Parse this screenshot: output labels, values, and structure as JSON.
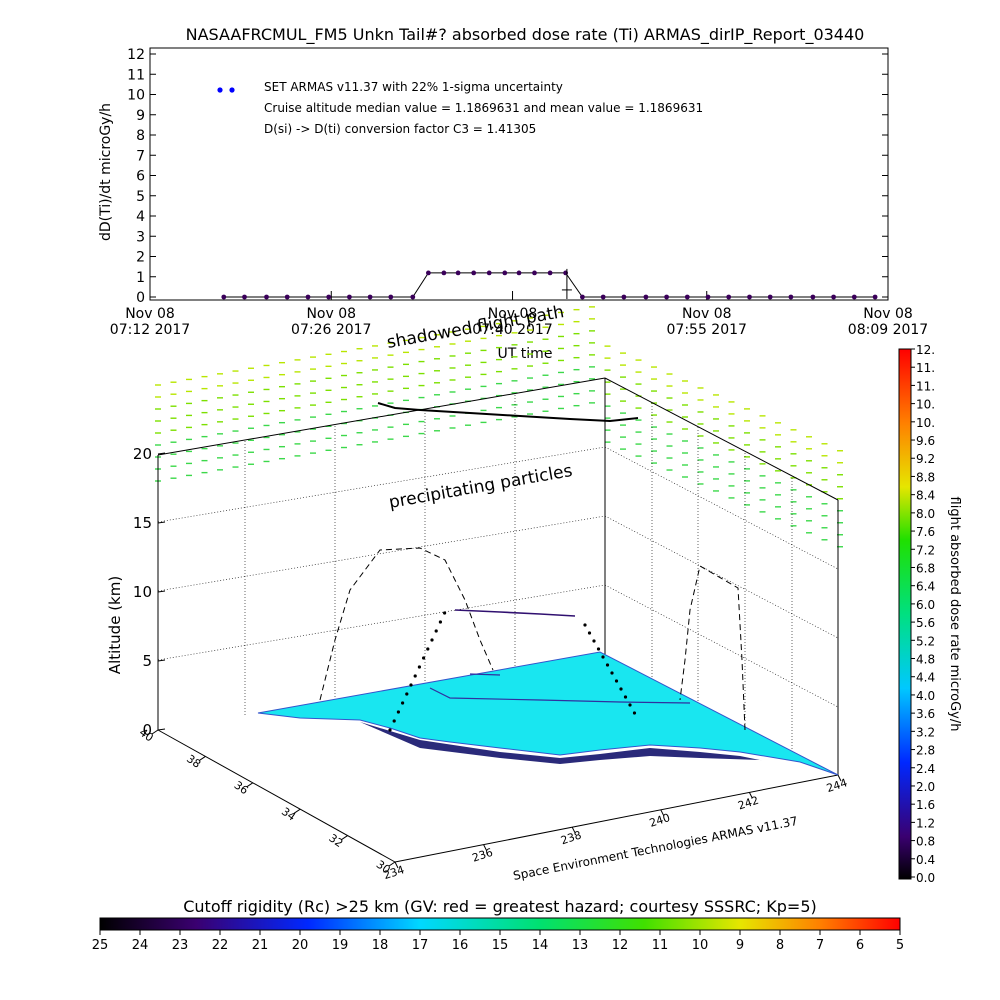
{
  "title": "NASAAFRCMUL_FM5 Unkn Tail#? absorbed dose rate (Ti) ARMAS_dirIP_Report_03440",
  "colors": {
    "point": "#3a005a",
    "legend_dot": "#0000ff",
    "surface": "#19e6f0",
    "line": "#000000"
  },
  "chart_data": [
    {
      "type": "line",
      "ylabel": "dD(Ti)/dt microGy/h",
      "xlabel": "UT time",
      "ylim": [
        0,
        12
      ],
      "yticks": [
        0,
        1,
        2,
        3,
        4,
        5,
        6,
        7,
        8,
        9,
        10,
        11,
        12
      ],
      "xticks": [
        {
          "date": "Nov 08",
          "time": "07:12 2017"
        },
        {
          "date": "Nov 08",
          "time": "07:26 2017"
        },
        {
          "date": "Nov 08",
          "time": "07:40 2017"
        },
        {
          "date": "Nov 08",
          "time": "07:55 2017"
        },
        {
          "date": "Nov 08",
          "time": "08:09 2017"
        }
      ],
      "x_minutes": [
        0,
        14,
        28,
        43,
        57
      ],
      "legend": [
        "SET ARMAS v11.37 with 22% 1-sigma uncertainty",
        "Cruise altitude median value = 1.1869631 and mean value = 1.1869631",
        "D(si) -> D(ti) conversion factor C3 = 1.41305"
      ],
      "series": [
        {
          "points": [
            [
              5.7,
              0
            ],
            [
              7.3,
              0
            ],
            [
              9.0,
              0
            ],
            [
              10.6,
              0
            ],
            [
              12.2,
              0
            ],
            [
              13.8,
              0
            ],
            [
              15.4,
              0
            ],
            [
              17.0,
              0
            ],
            [
              18.6,
              0
            ],
            [
              20.3,
              0
            ],
            [
              21.5,
              1.19
            ],
            [
              22.7,
              1.19
            ],
            [
              23.8,
              1.19
            ],
            [
              25.0,
              1.19
            ],
            [
              26.2,
              1.19
            ],
            [
              27.4,
              1.19
            ],
            [
              28.5,
              1.19
            ],
            [
              29.7,
              1.19
            ],
            [
              30.9,
              1.19
            ],
            [
              32.1,
              1.19
            ],
            [
              33.4,
              0
            ],
            [
              35.0,
              0
            ],
            [
              36.6,
              0
            ],
            [
              38.3,
              0
            ],
            [
              39.9,
              0
            ],
            [
              41.5,
              0
            ],
            [
              43.1,
              0
            ],
            [
              44.7,
              0
            ],
            [
              46.3,
              0
            ],
            [
              47.9,
              0
            ],
            [
              49.5,
              0
            ],
            [
              51.2,
              0
            ],
            [
              52.8,
              0
            ],
            [
              54.4,
              0
            ],
            [
              56.0,
              0
            ]
          ]
        }
      ]
    },
    {
      "type": "surface3d",
      "zlabel": "Altitude (km)",
      "zticks": [
        0,
        5,
        10,
        15,
        20
      ],
      "lat_ticks": [
        "40",
        "38",
        "36",
        "34",
        "32",
        "30"
      ],
      "lon_ticks": [
        "234",
        "236",
        "238",
        "240",
        "242",
        "244"
      ],
      "annotations": [
        "shadowed flight path",
        "precipitating particles"
      ],
      "credit": "Space Environment Technologies ARMAS v11.37"
    },
    {
      "type": "colorbar",
      "label": "flight absorbed dose rate microGy/h",
      "ticks": [
        "0.0",
        "0.4",
        "0.8",
        "1.2",
        "1.6",
        "2.0",
        "2.4",
        "2.8",
        "3.2",
        "3.6",
        "4.0",
        "4.4",
        "4.8",
        "5.2",
        "5.6",
        "6.0",
        "6.4",
        "6.8",
        "7.2",
        "7.6",
        "8.0",
        "8.4",
        "8.8",
        "9.2",
        "9.6",
        "10.",
        "10.",
        "11.",
        "11.",
        "12."
      ]
    },
    {
      "type": "colorbar",
      "label": "Cutoff rigidity (Rc) >25 km (GV: red = greatest hazard; courtesy SSSRC; Kp=5)",
      "ticks": [
        "25",
        "24",
        "23",
        "22",
        "21",
        "20",
        "19",
        "18",
        "17",
        "16",
        "15",
        "14",
        "13",
        "12",
        "11",
        "10",
        "9",
        "8",
        "7",
        "6",
        "5"
      ]
    }
  ]
}
